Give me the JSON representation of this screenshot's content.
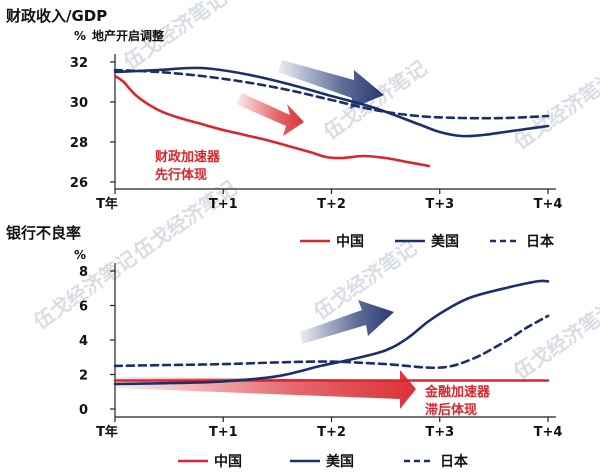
{
  "watermark": "伍戈经济笔记",
  "colors": {
    "china": "#d9262c",
    "usa": "#1c2f6b",
    "japan": "#1c2f6b",
    "arrow_red": "#d9262c",
    "arrow_blue": "#1c2f6b"
  },
  "chart_data": [
    {
      "type": "line",
      "title": "财政收入/GDP",
      "unit": "%",
      "subtitle": "地产开启调整",
      "x_ticks": [
        "T年",
        "T+1",
        "T+2",
        "T+3",
        "T+4"
      ],
      "xlim": [
        0,
        4
      ],
      "ylim": [
        26,
        32
      ],
      "y_ticks": [
        26,
        28,
        30,
        32
      ],
      "grid": false,
      "series": [
        {
          "name": "中国",
          "style": "solid",
          "color": "#d9262c",
          "x": [
            0,
            0.08,
            0.2,
            0.4,
            0.6,
            0.8,
            1.0,
            1.2,
            1.4,
            1.6,
            1.8,
            1.95,
            2.1,
            2.3,
            2.5,
            2.7,
            2.9
          ],
          "y": [
            31.3,
            31.0,
            30.3,
            29.6,
            29.2,
            28.9,
            28.6,
            28.35,
            28.1,
            27.8,
            27.5,
            27.25,
            27.2,
            27.3,
            27.2,
            27.0,
            26.8
          ]
        },
        {
          "name": "美国",
          "style": "solid",
          "color": "#1c2f6b",
          "x": [
            0,
            0.4,
            0.8,
            1.2,
            1.6,
            2.0,
            2.4,
            2.8,
            3.0,
            3.2,
            3.4,
            3.6,
            3.8,
            4.0
          ],
          "y": [
            31.5,
            31.6,
            31.7,
            31.4,
            30.9,
            30.3,
            29.7,
            28.9,
            28.5,
            28.3,
            28.35,
            28.5,
            28.65,
            28.8
          ]
        },
        {
          "name": "日本",
          "style": "dashed",
          "color": "#1c2f6b",
          "x": [
            0,
            0.4,
            0.8,
            1.2,
            1.6,
            2.0,
            2.4,
            2.8,
            3.2,
            3.6,
            4.0
          ],
          "y": [
            31.6,
            31.5,
            31.3,
            31.0,
            30.6,
            30.1,
            29.6,
            29.3,
            29.2,
            29.2,
            29.3
          ]
        }
      ],
      "annotation": [
        "财政加速器",
        "先行体现"
      ]
    },
    {
      "type": "line",
      "title": "银行不良率",
      "unit": "%",
      "x_ticks": [
        "T年",
        "T+1",
        "T+2",
        "T+3",
        "T+4"
      ],
      "xlim": [
        0,
        4
      ],
      "ylim": [
        0,
        8
      ],
      "y_ticks": [
        0,
        2,
        4,
        6,
        8
      ],
      "grid": false,
      "series": [
        {
          "name": "中国",
          "style": "solid",
          "color": "#d9262c",
          "x": [
            0,
            4
          ],
          "y": [
            1.65,
            1.65
          ]
        },
        {
          "name": "美国",
          "style": "solid",
          "color": "#1c2f6b",
          "x": [
            0,
            0.5,
            1.0,
            1.5,
            1.9,
            2.2,
            2.5,
            2.7,
            2.9,
            3.1,
            3.3,
            3.6,
            3.9,
            4.0
          ],
          "y": [
            1.45,
            1.5,
            1.6,
            1.9,
            2.5,
            2.9,
            3.4,
            4.1,
            5.1,
            5.9,
            6.5,
            7.0,
            7.4,
            7.4
          ]
        },
        {
          "name": "日本",
          "style": "dashed",
          "color": "#1c2f6b",
          "x": [
            0,
            0.5,
            1.0,
            1.5,
            2.0,
            2.5,
            3.0,
            3.3,
            3.6,
            3.8,
            4.0
          ],
          "y": [
            2.5,
            2.55,
            2.6,
            2.7,
            2.75,
            2.6,
            2.4,
            2.9,
            3.9,
            4.7,
            5.4
          ]
        }
      ],
      "annotation": [
        "金融加速器",
        "滞后体现"
      ]
    }
  ],
  "legend_top": [
    "中国",
    "美国",
    "日本"
  ],
  "legend_bottom": [
    "中国",
    "美国",
    "日本"
  ]
}
